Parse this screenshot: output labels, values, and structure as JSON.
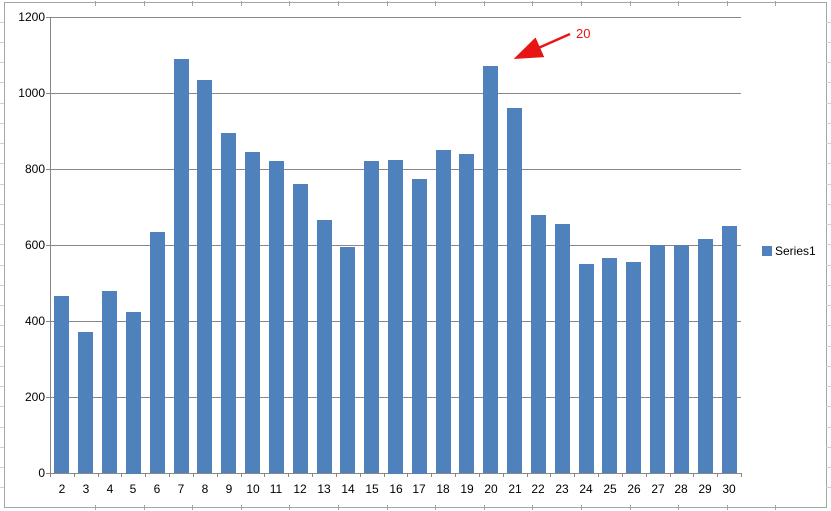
{
  "chart_data": {
    "type": "bar",
    "title": "",
    "xlabel": "",
    "ylabel": "",
    "categories": [
      "2",
      "3",
      "4",
      "5",
      "6",
      "7",
      "8",
      "9",
      "10",
      "11",
      "12",
      "13",
      "14",
      "15",
      "16",
      "17",
      "18",
      "19",
      "20",
      "21",
      "22",
      "23",
      "24",
      "25",
      "26",
      "27",
      "28",
      "29",
      "30"
    ],
    "series": [
      {
        "name": "Series1",
        "values": [
          465,
          370,
          480,
          425,
          635,
          1090,
          1035,
          895,
          845,
          820,
          760,
          665,
          595,
          820,
          825,
          775,
          850,
          840,
          1070,
          960,
          680,
          655,
          550,
          565,
          555,
          600,
          600,
          615,
          650
        ]
      }
    ],
    "ylim": [
      0,
      1200
    ],
    "yticks": [
      0,
      200,
      400,
      600,
      800,
      1000,
      1200
    ],
    "grid": true,
    "legend": {
      "position": "right",
      "label": "Series1"
    },
    "annotation": {
      "text": "20",
      "points_to_category": "20"
    },
    "colors": {
      "bar": "#4f81bd",
      "annotation": "#e81515",
      "gridline": "#878787",
      "axis": "#878787",
      "text": "#000000",
      "frame": "#a6a6a6",
      "col_stub": "#98a2b4",
      "row_stub": "#c7d3e6"
    }
  }
}
